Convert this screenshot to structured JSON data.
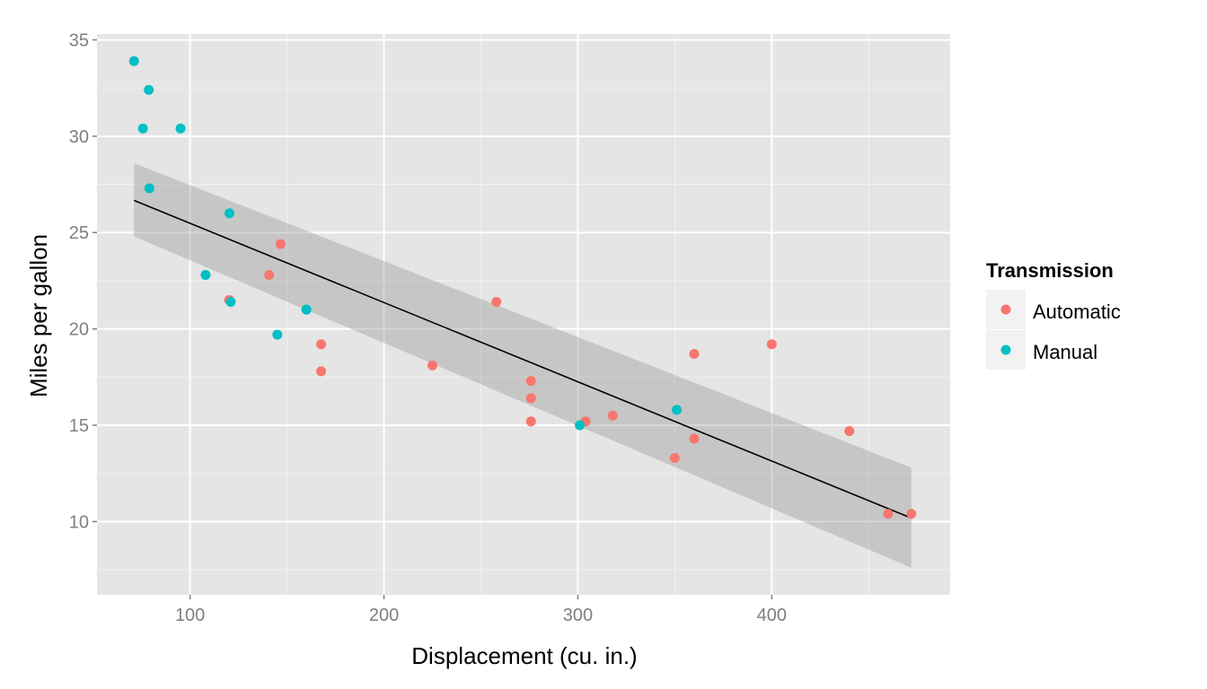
{
  "chart_data": {
    "type": "scatter",
    "xlabel": "Displacement (cu. in.)",
    "ylabel": "Miles per gallon",
    "xlim": [
      52,
      492
    ],
    "ylim": [
      6.2,
      35.3
    ],
    "x_ticks": [
      100,
      200,
      300,
      400
    ],
    "y_ticks": [
      10,
      15,
      20,
      25,
      30,
      35
    ],
    "grid": true,
    "legend": {
      "title": "Transmission",
      "placement": "right",
      "entries": [
        {
          "label": "Automatic",
          "color": "#F8766D"
        },
        {
          "label": "Manual",
          "color": "#00BFC4"
        }
      ]
    },
    "series": [
      {
        "name": "Automatic",
        "color": "#F8766D",
        "points": [
          [
            258,
            21.4
          ],
          [
            360,
            18.7
          ],
          [
            225,
            18.1
          ],
          [
            360,
            14.3
          ],
          [
            146.7,
            24.4
          ],
          [
            140.8,
            22.8
          ],
          [
            167.6,
            19.2
          ],
          [
            167.6,
            17.8
          ],
          [
            275.8,
            16.4
          ],
          [
            275.8,
            17.3
          ],
          [
            275.8,
            15.2
          ],
          [
            472,
            10.4
          ],
          [
            460,
            10.4
          ],
          [
            440,
            14.7
          ],
          [
            120.1,
            21.5
          ],
          [
            318,
            15.5
          ],
          [
            304,
            15.2
          ],
          [
            350,
            13.3
          ],
          [
            400,
            19.2
          ]
        ]
      },
      {
        "name": "Manual",
        "color": "#00BFC4",
        "points": [
          [
            160,
            21.0
          ],
          [
            160,
            21.0
          ],
          [
            108,
            22.8
          ],
          [
            78.7,
            32.4
          ],
          [
            75.7,
            30.4
          ],
          [
            71.1,
            33.9
          ],
          [
            79,
            27.3
          ],
          [
            120.3,
            26.0
          ],
          [
            95.1,
            30.4
          ],
          [
            351,
            15.8
          ],
          [
            145,
            19.7
          ],
          [
            301,
            15.0
          ],
          [
            121,
            21.4
          ]
        ]
      }
    ],
    "fit": {
      "type": "linear",
      "color": "#000000",
      "x": [
        71.1,
        472
      ],
      "y": [
        26.67,
        10.18
      ],
      "ci_lower": [
        24.8,
        7.6
      ],
      "ci_upper": [
        28.6,
        12.8
      ]
    }
  }
}
